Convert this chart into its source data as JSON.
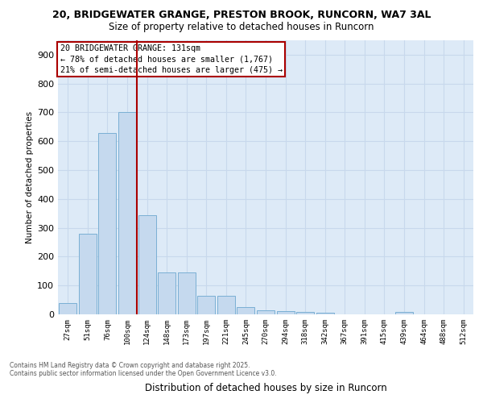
{
  "title1": "20, BRIDGEWATER GRANGE, PRESTON BROOK, RUNCORN, WA7 3AL",
  "title2": "Size of property relative to detached houses in Runcorn",
  "xlabel": "Distribution of detached houses by size in Runcorn",
  "ylabel": "Number of detached properties",
  "bar_color": "#c5d9ee",
  "bar_edge_color": "#7aafd4",
  "grid_color": "#c8d8ec",
  "background_color": "#ddeaf7",
  "annotation_line1": "20 BRIDGEWATER GRANGE: 131sqm",
  "annotation_line2": "← 78% of detached houses are smaller (1,767)",
  "annotation_line3": "21% of semi-detached houses are larger (475) →",
  "vline_color": "#aa0000",
  "categories": [
    "27sqm",
    "51sqm",
    "76sqm",
    "100sqm",
    "124sqm",
    "148sqm",
    "173sqm",
    "197sqm",
    "221sqm",
    "245sqm",
    "270sqm",
    "294sqm",
    "318sqm",
    "342sqm",
    "367sqm",
    "391sqm",
    "415sqm",
    "439sqm",
    "464sqm",
    "488sqm",
    "512sqm"
  ],
  "values": [
    40,
    280,
    630,
    700,
    345,
    145,
    145,
    65,
    65,
    25,
    15,
    10,
    8,
    5,
    0,
    0,
    0,
    8,
    0,
    0,
    0
  ],
  "ylim": [
    0,
    950
  ],
  "yticks": [
    0,
    100,
    200,
    300,
    400,
    500,
    600,
    700,
    800,
    900
  ],
  "footer1": "Contains HM Land Registry data © Crown copyright and database right 2025.",
  "footer2": "Contains public sector information licensed under the Open Government Licence v3.0.",
  "vline_position": 3.5
}
